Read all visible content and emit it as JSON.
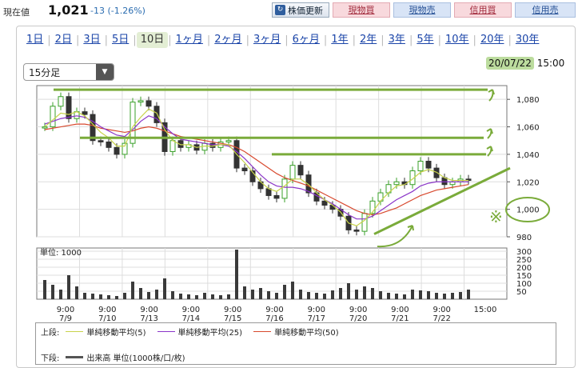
{
  "header": {
    "price_label": "現在値",
    "price_value": "1,021",
    "price_change": "-13 (-1.26%)",
    "refresh_label": "株価更新",
    "buy_spot": "現物買",
    "sell_spot": "現物売",
    "buy_margin": "信用買",
    "sell_margin": "信用売"
  },
  "tabs": [
    "1日",
    "2日",
    "3日",
    "5日",
    "10日",
    "1ヶ月",
    "2ヶ月",
    "3ヶ月",
    "6ヶ月",
    "1年",
    "2年",
    "3年",
    "5年",
    "10年",
    "20年",
    "30年"
  ],
  "active_tab": "10日",
  "interval": {
    "value": "15分足"
  },
  "datetime": {
    "date": "20/07/22",
    "time": "15:00"
  },
  "colors": {
    "ma5": "#c8d34a",
    "ma25": "#8a35c8",
    "ma50": "#d8492e",
    "annotation": "#7aab3a",
    "candle_up": "#3aa02a",
    "candle_down": "#333333",
    "volume": "#3a3a3a"
  },
  "chart_data": {
    "type": "candlestick",
    "price_axis": {
      "ticks": [
        "1,080",
        "1,060",
        "1,040",
        "1,020",
        "1,000",
        "980"
      ],
      "range": [
        980,
        1090
      ]
    },
    "volume_axis": {
      "unit_label": "単位: 1000",
      "ticks": [
        "300",
        "250",
        "200",
        "150",
        "100",
        "50"
      ],
      "range": [
        0,
        320
      ]
    },
    "x_time_labels": [
      "9:00",
      "9:00",
      "9:00",
      "9:00",
      "9:00",
      "9:00",
      "9:00",
      "9:00",
      "9:00",
      "9:00",
      "15:00"
    ],
    "x_date_labels": [
      "7/9",
      "7/10",
      "7/13",
      "7/14",
      "7/15",
      "7/16",
      "7/17",
      "7/20",
      "7/21",
      "7/22",
      ""
    ],
    "price_path": [
      1060,
      1075,
      1082,
      1066,
      1071,
      1069,
      1050,
      1049,
      1045,
      1040,
      1048,
      1078,
      1079,
      1075,
      1063,
      1042,
      1050,
      1045,
      1047,
      1043,
      1048,
      1045,
      1049,
      1050,
      1030,
      1028,
      1020,
      1015,
      1010,
      1008,
      1022,
      1032,
      1025,
      1012,
      1006,
      1003,
      1000,
      995,
      985,
      984,
      997,
      1006,
      1012,
      1018,
      1020,
      1018,
      1028,
      1035,
      1030,
      1023,
      1018,
      1020,
      1022,
      1021
    ],
    "ma5": [
      1060,
      1065,
      1070,
      1069,
      1071,
      1068,
      1062,
      1056,
      1052,
      1046,
      1046,
      1060,
      1067,
      1073,
      1070,
      1058,
      1050,
      1047,
      1047,
      1045,
      1046,
      1046,
      1047,
      1047,
      1040,
      1034,
      1027,
      1020,
      1015,
      1013,
      1017,
      1022,
      1022,
      1018,
      1012,
      1007,
      1003,
      998,
      990,
      988,
      992,
      998,
      1006,
      1012,
      1017,
      1018,
      1022,
      1027,
      1029,
      1027,
      1023,
      1021,
      1021,
      1021
    ],
    "ma25": [
      1062,
      1064,
      1066,
      1067,
      1068,
      1067,
      1064,
      1060,
      1057,
      1054,
      1053,
      1058,
      1064,
      1068,
      1066,
      1060,
      1055,
      1051,
      1050,
      1049,
      1048,
      1047,
      1047,
      1046,
      1042,
      1037,
      1031,
      1025,
      1020,
      1017,
      1016,
      1016,
      1015,
      1013,
      1010,
      1007,
      1004,
      1000,
      996,
      993,
      993,
      995,
      999,
      1003,
      1007,
      1010,
      1013,
      1017,
      1019,
      1020,
      1020,
      1020,
      1020,
      1020
    ],
    "ma50": [
      1058,
      1059,
      1060,
      1061,
      1062,
      1062,
      1061,
      1059,
      1058,
      1057,
      1056,
      1057,
      1059,
      1060,
      1059,
      1057,
      1055,
      1053,
      1052,
      1051,
      1050,
      1049,
      1048,
      1047,
      1045,
      1042,
      1038,
      1034,
      1030,
      1026,
      1023,
      1021,
      1019,
      1017,
      1014,
      1011,
      1008,
      1005,
      1002,
      999,
      997,
      996,
      997,
      999,
      1001,
      1004,
      1007,
      1010,
      1012,
      1014,
      1015,
      1016,
      1017,
      1018
    ],
    "volume": [
      120,
      90,
      60,
      150,
      80,
      40,
      35,
      30,
      25,
      20,
      40,
      110,
      70,
      45,
      60,
      130,
      50,
      35,
      30,
      25,
      40,
      30,
      25,
      30,
      310,
      80,
      60,
      70,
      50,
      40,
      90,
      110,
      60,
      45,
      40,
      35,
      55,
      70,
      100,
      60,
      80,
      70,
      50,
      40,
      35,
      30,
      60,
      55,
      50,
      40,
      35,
      40,
      45,
      60
    ],
    "legend": {
      "upper_label": "上段:",
      "lower_label": "下段:",
      "ma5_name": "単純移動平均(5)",
      "ma25_name": "単純移動平均(25)",
      "ma50_name": "単純移動平均(50)",
      "volume_name": "出来高 単位(1000株/口/枚)"
    },
    "annotation_mark": "※"
  }
}
